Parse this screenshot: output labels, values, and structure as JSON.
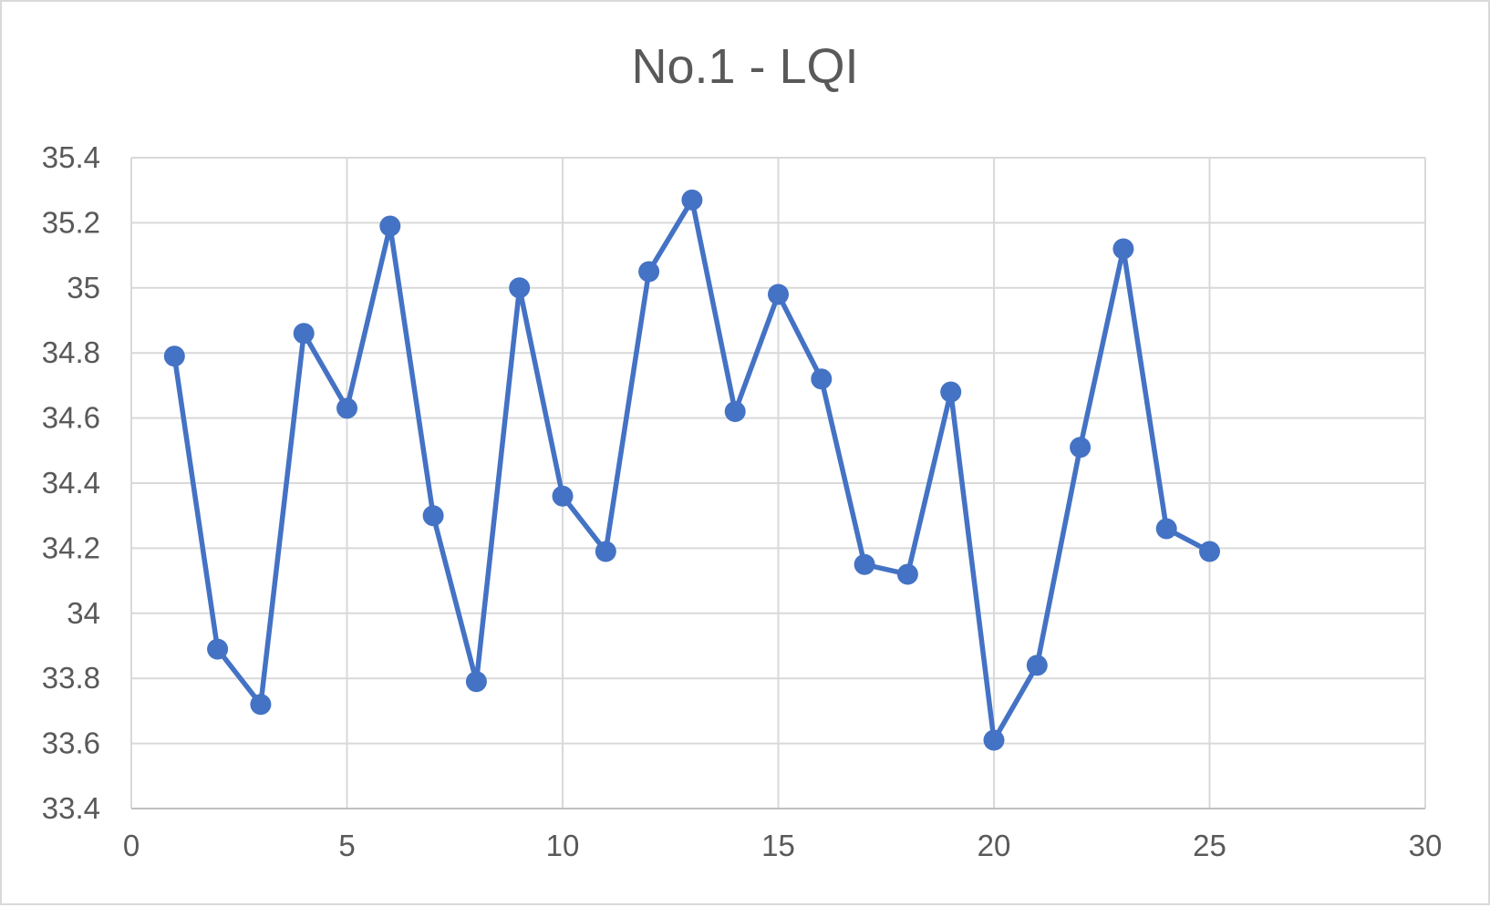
{
  "chart_data": {
    "type": "line",
    "title": "No.1 - LQI",
    "xlabel": "",
    "ylabel": "",
    "xlim": [
      0,
      30
    ],
    "ylim": [
      33.4,
      35.4
    ],
    "xticks": [
      0,
      5,
      10,
      15,
      20,
      25,
      30
    ],
    "yticks": [
      33.4,
      33.6,
      33.8,
      34,
      34.2,
      34.4,
      34.6,
      34.8,
      35,
      35.2,
      35.4
    ],
    "ytick_labels": [
      "33.4",
      "33.6",
      "33.8",
      "34",
      "34.2",
      "34.4",
      "34.6",
      "34.8",
      "35",
      "35.2",
      "35.4"
    ],
    "grid": true,
    "legend": "none",
    "series": [
      {
        "color": "#4472c4",
        "marker": "circle",
        "x": [
          1,
          2,
          3,
          4,
          5,
          6,
          7,
          8,
          9,
          10,
          11,
          12,
          13,
          14,
          15,
          16,
          17,
          18,
          19,
          20,
          21,
          22,
          23,
          24,
          25
        ],
        "values": [
          34.79,
          33.89,
          33.72,
          34.86,
          34.63,
          35.19,
          34.3,
          33.79,
          35.0,
          34.36,
          34.19,
          35.05,
          35.27,
          34.62,
          34.98,
          34.72,
          34.15,
          34.12,
          34.68,
          33.61,
          33.84,
          34.51,
          35.12,
          34.26,
          34.19
        ]
      }
    ]
  }
}
